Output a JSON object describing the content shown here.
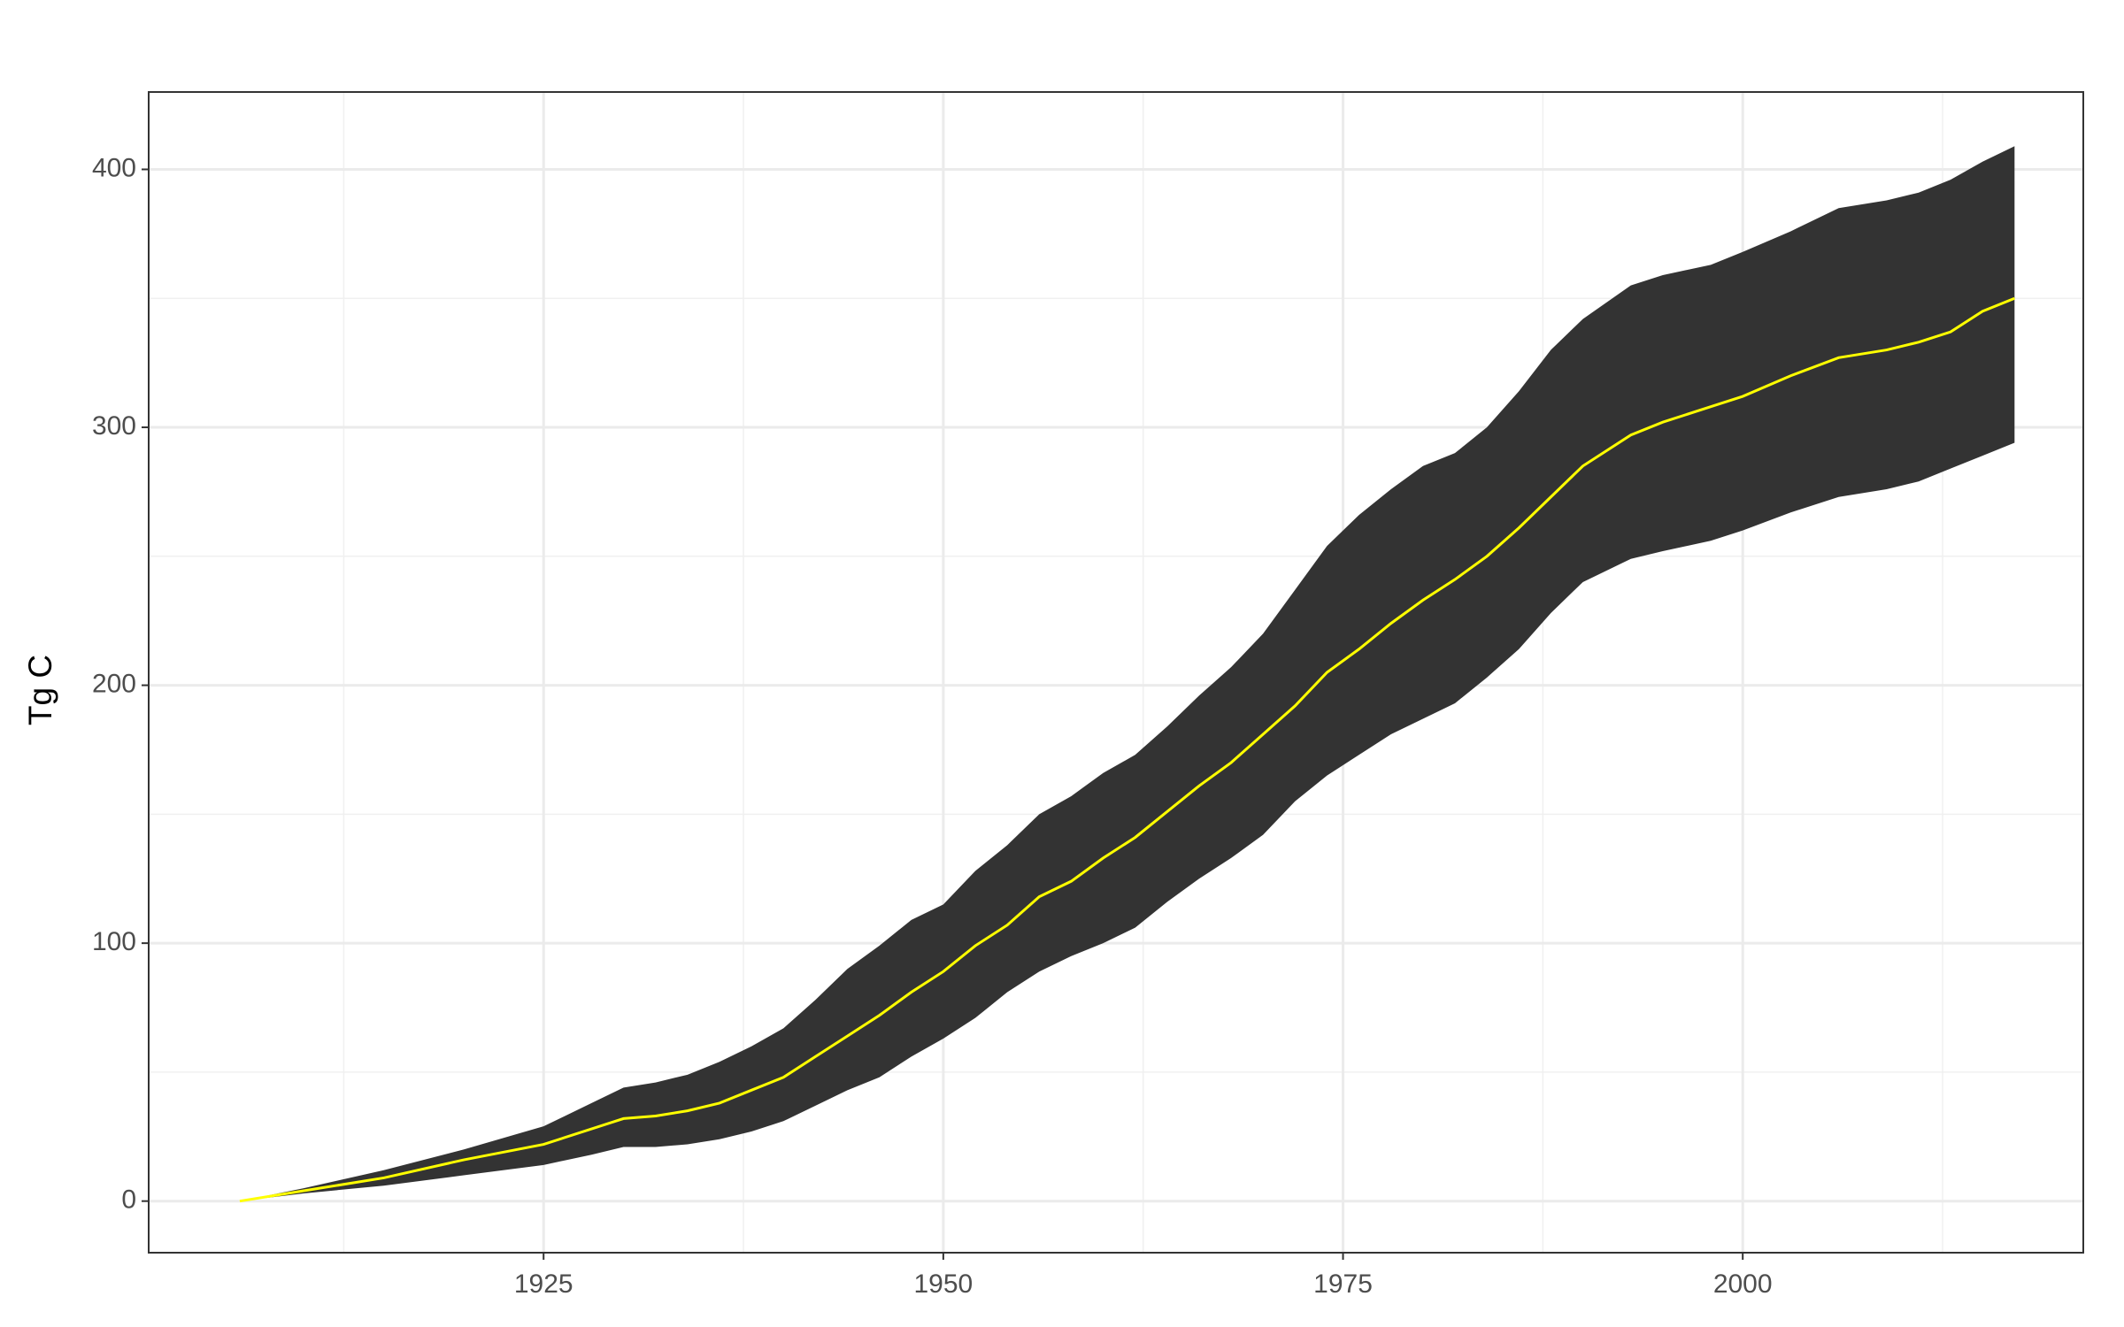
{
  "chart_data": {
    "type": "ribbon-line",
    "y_label": "Tg C",
    "x": [
      1906,
      1910,
      1915,
      1920,
      1925,
      1928,
      1930,
      1932,
      1934,
      1936,
      1938,
      1940,
      1942,
      1944,
      1946,
      1948,
      1950,
      1952,
      1954,
      1956,
      1958,
      1960,
      1962,
      1964,
      1966,
      1968,
      1970,
      1972,
      1974,
      1976,
      1978,
      1980,
      1982,
      1984,
      1986,
      1988,
      1990,
      1993,
      1995,
      1998,
      2000,
      2003,
      2006,
      2009,
      2011,
      2013,
      2015,
      2017
    ],
    "band": {
      "color": "#333333",
      "upper": [
        0,
        5,
        12,
        20,
        29,
        38,
        44,
        46,
        49,
        54,
        60,
        67,
        78,
        90,
        99,
        109,
        115,
        128,
        138,
        150,
        157,
        166,
        173,
        184,
        196,
        207,
        220,
        237,
        254,
        266,
        276,
        285,
        290,
        300,
        314,
        330,
        342,
        355,
        359,
        363,
        368,
        376,
        385,
        388,
        391,
        396,
        403,
        409
      ],
      "lower": [
        0,
        3,
        6,
        10,
        14,
        18,
        21,
        21,
        22,
        24,
        27,
        31,
        37,
        43,
        48,
        56,
        63,
        71,
        81,
        89,
        95,
        100,
        106,
        116,
        125,
        133,
        142,
        155,
        165,
        173,
        181,
        187,
        193,
        203,
        214,
        228,
        240,
        249,
        252,
        256,
        260,
        267,
        273,
        276,
        279,
        284,
        289,
        294
      ]
    },
    "series": [
      {
        "color": "#ffff00",
        "values": [
          0,
          4,
          9,
          16,
          22,
          28,
          32,
          33,
          35,
          38,
          43,
          48,
          56,
          64,
          72,
          81,
          89,
          99,
          107,
          118,
          124,
          133,
          141,
          151,
          161,
          170,
          181,
          192,
          205,
          214,
          224,
          233,
          241,
          250,
          261,
          273,
          285,
          297,
          302,
          308,
          312,
          320,
          327,
          330,
          333,
          337,
          345,
          350
        ]
      }
    ],
    "xlim": [
      1900.3,
      2021.3
    ],
    "xticks": [
      1925,
      1950,
      1975,
      2000
    ],
    "ylim": [
      -20,
      430
    ],
    "yticks": [
      0,
      100,
      200,
      300,
      400
    ],
    "grid": true
  }
}
